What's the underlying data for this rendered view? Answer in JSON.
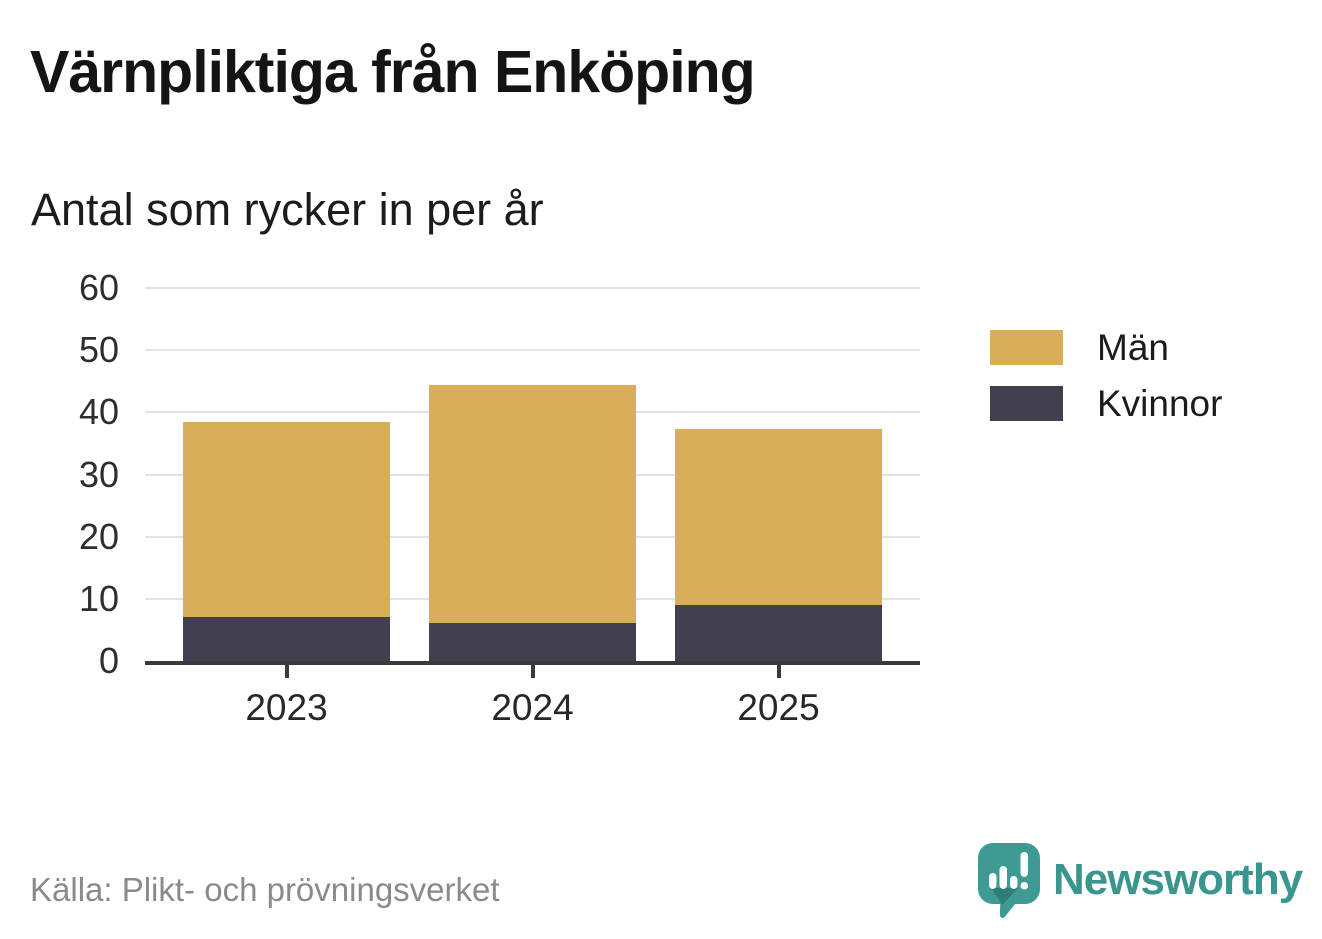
{
  "header": {
    "title": "Värnpliktiga från Enköping",
    "subtitle": "Antal som rycker in per år"
  },
  "chart_data": {
    "type": "bar",
    "stacked": true,
    "title": "Värnpliktiga från Enköping",
    "subtitle": "Antal som rycker in per år",
    "categories": [
      "2023",
      "2024",
      "2025"
    ],
    "series": [
      {
        "name": "Kvinnor",
        "color": "#423F4E",
        "values": [
          7,
          6,
          9
        ]
      },
      {
        "name": "Män",
        "color": "#D9AE58",
        "values": [
          31,
          38,
          28
        ]
      }
    ],
    "totals": [
      38,
      44,
      37
    ],
    "xlabel": "",
    "ylabel": "",
    "ylim": [
      0,
      60
    ],
    "yticks": [
      0,
      10,
      20,
      30,
      40,
      50,
      60
    ],
    "grid": true,
    "legend_position": "right",
    "legend": [
      {
        "label": "Män",
        "color": "#D9AE58"
      },
      {
        "label": "Kvinnor",
        "color": "#423F4E"
      }
    ]
  },
  "footer": {
    "source": "Källa: Plikt- och prövningsverket",
    "brand": "Newsworthy"
  },
  "colors": {
    "men": "#D9AE58",
    "women": "#423F4E",
    "axis": "#3A3A3A",
    "gridline": "#E3E3E3",
    "source_text": "#8A8A8A",
    "brand_teal": "#3A958E",
    "title_text": "#141414"
  }
}
